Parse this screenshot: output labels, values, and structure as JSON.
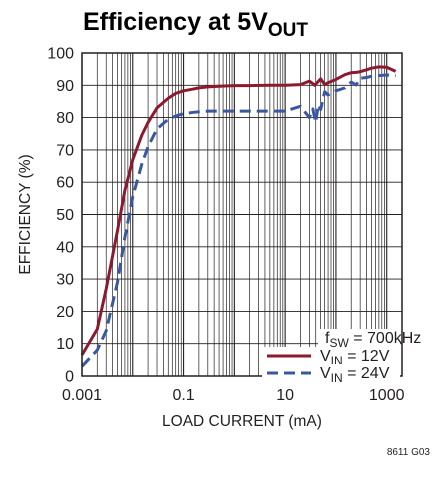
{
  "chart_data": {
    "type": "line",
    "title": {
      "text": "Efficiency at 5V",
      "sub": "OUT"
    },
    "xlabel": "LOAD CURRENT (mA)",
    "ylabel": "EFFICIENCY (%)",
    "xscale": "log",
    "xlim": [
      0.001,
      2000
    ],
    "ylim": [
      0,
      100
    ],
    "xticks": [
      {
        "value": 0.001,
        "label": "0.001"
      },
      {
        "value": 0.1,
        "label": "0.1"
      },
      {
        "value": 10,
        "label": "10"
      },
      {
        "value": 1000,
        "label": "1000"
      }
    ],
    "yticks": [
      {
        "value": 0,
        "label": "0"
      },
      {
        "value": 10,
        "label": "10"
      },
      {
        "value": 20,
        "label": "20"
      },
      {
        "value": 30,
        "label": "30"
      },
      {
        "value": 40,
        "label": "40"
      },
      {
        "value": 50,
        "label": "50"
      },
      {
        "value": 60,
        "label": "60"
      },
      {
        "value": 70,
        "label": "70"
      },
      {
        "value": 80,
        "label": "80"
      },
      {
        "value": 90,
        "label": "90"
      },
      {
        "value": 100,
        "label": "100"
      }
    ],
    "grid": true,
    "legend_position": "bottom-right",
    "legend_note": {
      "main": "f",
      "sub": "SW",
      "rest": " = 700kHz"
    },
    "series": [
      {
        "legend_main": "V",
        "legend_sub": "IN",
        "legend_rest": " = 12V",
        "color": "#8b1a30",
        "dash": "solid",
        "x": [
          0.001,
          0.002,
          0.003,
          0.005,
          0.007,
          0.01,
          0.015,
          0.02,
          0.03,
          0.05,
          0.07,
          0.1,
          0.15,
          0.2,
          0.3,
          0.5,
          1,
          2,
          5,
          10,
          20,
          30,
          35,
          38,
          40,
          45,
          50,
          60,
          70,
          100,
          150,
          200,
          250,
          300,
          400,
          500,
          700,
          1000,
          1500
        ],
        "y": [
          6.5,
          14.5,
          27,
          45,
          57.5,
          67,
          74.5,
          78.5,
          83,
          86,
          87.5,
          88.3,
          88.8,
          89.2,
          89.5,
          89.7,
          89.9,
          89.9,
          90,
          90,
          90.2,
          91.3,
          90.5,
          90,
          90.4,
          91.2,
          92,
          90.2,
          90.8,
          91.8,
          93.3,
          93.9,
          94,
          94.2,
          94.8,
          95.3,
          95.7,
          95.6,
          94.3
        ]
      },
      {
        "legend_main": "V",
        "legend_sub": "IN",
        "legend_rest": " = 24V",
        "color": "#3a57a0",
        "dash": "dashed",
        "x": [
          0.001,
          0.002,
          0.003,
          0.005,
          0.007,
          0.01,
          0.015,
          0.02,
          0.03,
          0.05,
          0.07,
          0.1,
          0.15,
          0.2,
          0.3,
          0.5,
          1,
          2,
          5,
          10,
          20,
          30,
          35,
          40,
          45,
          50,
          60,
          70,
          80,
          100,
          150,
          200,
          250,
          300,
          400,
          500,
          700,
          1000,
          1500
        ],
        "y": [
          3,
          8,
          14,
          29,
          43,
          55.5,
          65.5,
          71,
          76.5,
          79.5,
          80.5,
          81.2,
          81.6,
          81.8,
          82,
          82,
          82,
          82,
          82,
          82,
          83.5,
          80,
          82.7,
          78.5,
          84,
          82.5,
          88,
          87,
          87.5,
          88.3,
          89.2,
          91,
          90.1,
          92.2,
          92.4,
          92.8,
          93,
          93.2,
          93
        ]
      }
    ],
    "figure_id": "8611 G03"
  }
}
